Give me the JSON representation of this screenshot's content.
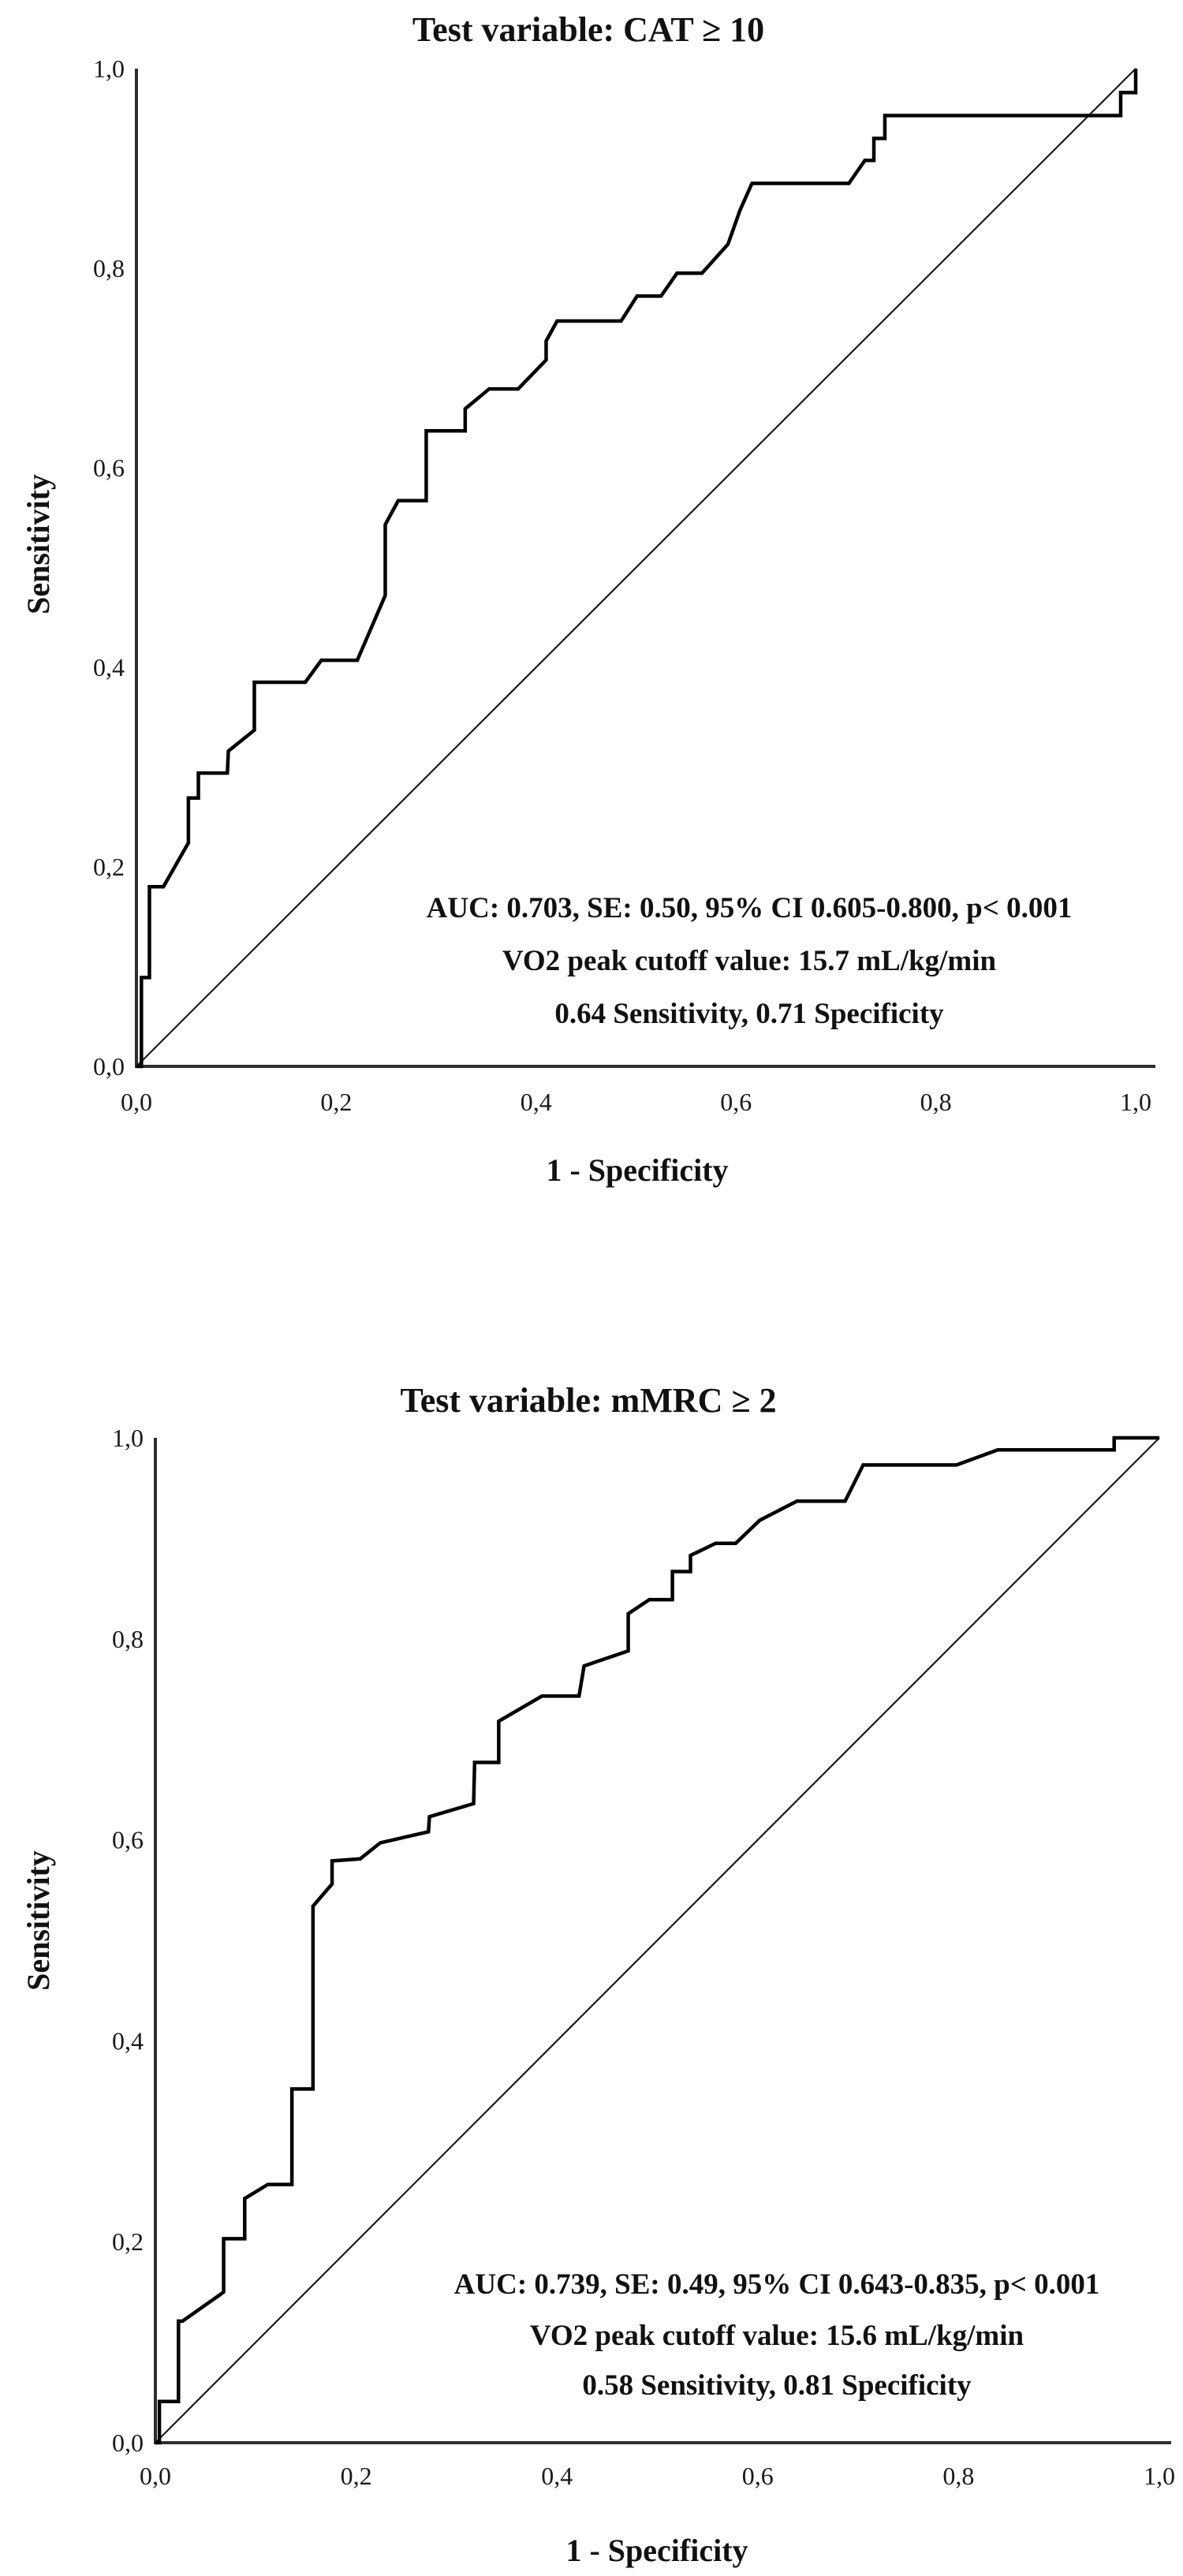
{
  "page": {
    "background": "#ffffff",
    "colors": {
      "curve": "#000000",
      "reference_diagonal": "#1c1c1c",
      "axis": "#2e2e2e",
      "text": "#111111"
    }
  },
  "chart_data": [
    {
      "type": "line",
      "title": "Test variable: CAT ≥ 10",
      "xlabel": "1 - Specificity",
      "ylabel": "Sensitivity",
      "xlim": [
        0,
        1
      ],
      "ylim": [
        0,
        1
      ],
      "grid": false,
      "legend": "none",
      "x_tick_values": [
        0,
        0.2,
        0.4,
        0.6,
        0.8,
        1.0
      ],
      "x_tick_labels": [
        "0,0",
        "0,2",
        "0,4",
        "0,6",
        "0,8",
        "1,0"
      ],
      "y_tick_values": [
        0,
        0.2,
        0.4,
        0.6,
        0.8,
        1.0
      ],
      "y_tick_labels": [
        "0,0",
        "0,2",
        "0,4",
        "0,6",
        "0,8",
        "1,0"
      ],
      "annotations": [
        "AUC: 0.703, SE: 0.50, 95% CI 0.605-0.800, p< 0.001",
        "VO2 peak cutoff value: 15.7 mL/kg/min",
        "0.64 Sensitivity, 0.71 Specificity"
      ],
      "stats": {
        "auc": 0.703,
        "se": 0.5,
        "ci_95": "0.605-0.800",
        "p": "< 0.001",
        "cutoff": "15.7 mL/kg/min",
        "sensitivity": 0.64,
        "specificity": 0.71
      },
      "series": [
        {
          "name": "ROC curve (CAT ≥ 10)",
          "points": [
            [
              0,
              0
            ],
            [
              0.005,
              0
            ],
            [
              0.005,
              0.089
            ],
            [
              0.013,
              0.089
            ],
            [
              0.013,
              0.18
            ],
            [
              0.027,
              0.18
            ],
            [
              0.052,
              0.224
            ],
            [
              0.052,
              0.269
            ],
            [
              0.062,
              0.269
            ],
            [
              0.062,
              0.294
            ],
            [
              0.091,
              0.294
            ],
            [
              0.092,
              0.316
            ],
            [
              0.118,
              0.337
            ],
            [
              0.118,
              0.385
            ],
            [
              0.169,
              0.385
            ],
            [
              0.185,
              0.407
            ],
            [
              0.221,
              0.407
            ],
            [
              0.249,
              0.472
            ],
            [
              0.249,
              0.543
            ],
            [
              0.262,
              0.567
            ],
            [
              0.29,
              0.567
            ],
            [
              0.29,
              0.637
            ],
            [
              0.329,
              0.637
            ],
            [
              0.329,
              0.659
            ],
            [
              0.353,
              0.679
            ],
            [
              0.382,
              0.679
            ],
            [
              0.41,
              0.708
            ],
            [
              0.41,
              0.727
            ],
            [
              0.421,
              0.747
            ],
            [
              0.485,
              0.747
            ],
            [
              0.501,
              0.772
            ],
            [
              0.525,
              0.772
            ],
            [
              0.541,
              0.795
            ],
            [
              0.566,
              0.795
            ],
            [
              0.592,
              0.824
            ],
            [
              0.604,
              0.858
            ],
            [
              0.616,
              0.885
            ],
            [
              0.713,
              0.885
            ],
            [
              0.729,
              0.908
            ],
            [
              0.738,
              0.908
            ],
            [
              0.738,
              0.93
            ],
            [
              0.749,
              0.93
            ],
            [
              0.749,
              0.953
            ],
            [
              0.985,
              0.953
            ],
            [
              0.985,
              0.976
            ],
            [
              1,
              0.976
            ],
            [
              1,
              1
            ]
          ]
        },
        {
          "name": "Reference diagonal",
          "points": [
            [
              0,
              0
            ],
            [
              1,
              1
            ]
          ]
        }
      ]
    },
    {
      "type": "line",
      "title": "Test variable: mMRC ≥ 2",
      "xlabel": "1 - Specificity",
      "ylabel": "Sensitivity",
      "xlim": [
        0,
        1
      ],
      "ylim": [
        0,
        1
      ],
      "grid": false,
      "legend": "none",
      "x_tick_values": [
        0,
        0.2,
        0.4,
        0.6,
        0.8,
        1.0
      ],
      "x_tick_labels": [
        "0,0",
        "0,2",
        "0,4",
        "0,6",
        "0,8",
        "1,0"
      ],
      "y_tick_values": [
        0,
        0.2,
        0.4,
        0.6,
        0.8,
        1.0
      ],
      "y_tick_labels": [
        "0,0",
        "0,2",
        "0,4",
        "0,6",
        "0,8",
        "1,0"
      ],
      "annotations": [
        "AUC: 0.739, SE: 0.49, 95% CI 0.643-0.835, p< 0.001",
        "VO2 peak cutoff value: 15.6 mL/kg/min",
        "0.58 Sensitivity, 0.81 Specificity"
      ],
      "stats": {
        "auc": 0.739,
        "se": 0.49,
        "ci_95": "0.643-0.835",
        "p": "< 0.001",
        "cutoff": "15.6 mL/kg/min",
        "sensitivity": 0.58,
        "specificity": 0.81
      },
      "series": [
        {
          "name": "ROC curve (mMRC ≥ 2)",
          "points": [
            [
              0,
              0
            ],
            [
              0.004,
              0
            ],
            [
              0.004,
              0.041
            ],
            [
              0.023,
              0.041
            ],
            [
              0.023,
              0.121
            ],
            [
              0.027,
              0.121
            ],
            [
              0.064,
              0.147
            ],
            [
              0.068,
              0.15
            ],
            [
              0.068,
              0.203
            ],
            [
              0.089,
              0.203
            ],
            [
              0.089,
              0.243
            ],
            [
              0.112,
              0.257
            ],
            [
              0.136,
              0.257
            ],
            [
              0.136,
              0.352
            ],
            [
              0.157,
              0.352
            ],
            [
              0.157,
              0.534
            ],
            [
              0.176,
              0.556
            ],
            [
              0.176,
              0.579
            ],
            [
              0.204,
              0.581
            ],
            [
              0.224,
              0.597
            ],
            [
              0.272,
              0.608
            ],
            [
              0.273,
              0.623
            ],
            [
              0.317,
              0.636
            ],
            [
              0.318,
              0.677
            ],
            [
              0.342,
              0.677
            ],
            [
              0.342,
              0.718
            ],
            [
              0.385,
              0.743
            ],
            [
              0.422,
              0.743
            ],
            [
              0.427,
              0.773
            ],
            [
              0.471,
              0.788
            ],
            [
              0.471,
              0.825
            ],
            [
              0.492,
              0.839
            ],
            [
              0.515,
              0.839
            ],
            [
              0.515,
              0.867
            ],
            [
              0.533,
              0.867
            ],
            [
              0.533,
              0.883
            ],
            [
              0.558,
              0.895
            ],
            [
              0.578,
              0.895
            ],
            [
              0.602,
              0.918
            ],
            [
              0.639,
              0.937
            ],
            [
              0.687,
              0.937
            ],
            [
              0.705,
              0.973
            ],
            [
              0.798,
              0.973
            ],
            [
              0.839,
              0.988
            ],
            [
              0.955,
              0.988
            ],
            [
              0.955,
              1
            ],
            [
              1,
              1
            ]
          ]
        },
        {
          "name": "Reference diagonal",
          "points": [
            [
              0,
              0
            ],
            [
              1,
              1
            ]
          ]
        }
      ]
    }
  ]
}
